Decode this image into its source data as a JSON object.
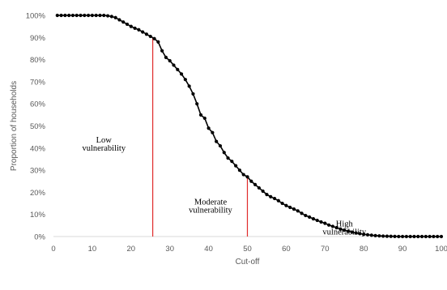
{
  "chart_data": {
    "type": "line",
    "title": "",
    "xlabel": "Cut-off",
    "ylabel": "Proportion of households",
    "xlim": [
      0,
      100
    ],
    "ylim": [
      0,
      100
    ],
    "x_ticks": [
      0,
      10,
      20,
      30,
      40,
      50,
      60,
      70,
      80,
      90,
      100
    ],
    "x_tick_labels": [
      "0",
      "10",
      "20",
      "30",
      "40",
      "50",
      "60",
      "70",
      "80",
      "90",
      "100"
    ],
    "y_ticks": [
      0,
      10,
      20,
      30,
      40,
      50,
      60,
      70,
      80,
      90,
      100
    ],
    "y_tick_labels": [
      "0%",
      "10%",
      "20%",
      "30%",
      "40%",
      "50%",
      "60%",
      "70%",
      "80%",
      "90%",
      "100%"
    ],
    "grid": false,
    "legend": "none",
    "colors": {
      "series": "#000000",
      "cutoff_lines": "#e02b2b",
      "text": "#595959"
    },
    "series": [
      {
        "name": "",
        "x": [
          1,
          2,
          3,
          4,
          5,
          6,
          7,
          8,
          9,
          10,
          11,
          12,
          13,
          14,
          15,
          16,
          17,
          18,
          19,
          20,
          21,
          22,
          23,
          24,
          25,
          26,
          27,
          28,
          29,
          30,
          31,
          32,
          33,
          34,
          35,
          36,
          37,
          38,
          39,
          40,
          41,
          42,
          43,
          44,
          45,
          46,
          47,
          48,
          49,
          50,
          51,
          52,
          53,
          54,
          55,
          56,
          57,
          58,
          59,
          60,
          61,
          62,
          63,
          64,
          65,
          66,
          67,
          68,
          69,
          70,
          71,
          72,
          73,
          74,
          75,
          76,
          77,
          78,
          79,
          80,
          81,
          82,
          83,
          84,
          85,
          86,
          87,
          88,
          89,
          90,
          91,
          92,
          93,
          94,
          95,
          96,
          97,
          98,
          99,
          100
        ],
        "values": [
          100,
          100,
          100,
          100,
          100,
          100,
          100,
          100,
          100,
          100,
          100,
          100,
          100,
          99.8,
          99.5,
          99,
          98,
          97,
          96,
          95,
          94.2,
          93.5,
          92.5,
          91.5,
          90.5,
          89.5,
          88,
          84,
          81,
          79.5,
          77.5,
          75.5,
          73.5,
          71,
          68,
          64.5,
          60,
          55,
          53.5,
          49,
          47,
          43,
          41,
          38,
          35.5,
          34,
          32,
          30,
          28,
          27,
          25,
          23.5,
          22,
          20.5,
          19,
          18,
          17.2,
          16.2,
          15,
          14,
          13.2,
          12.4,
          11.6,
          10.5,
          9.5,
          8.8,
          8,
          7.3,
          6.6,
          6,
          5.2,
          4.6,
          4,
          3.4,
          2.9,
          2.4,
          2,
          1.6,
          1.3,
          1,
          0.8,
          0.6,
          0.4,
          0.3,
          0.2,
          0.15,
          0.1,
          0.05,
          0,
          0,
          0,
          0,
          0,
          0,
          0,
          0,
          0,
          0,
          0,
          0
        ]
      }
    ],
    "cutoff_lines": [
      {
        "x": 25.6,
        "y": 90
      },
      {
        "x": 50,
        "y": 27
      }
    ],
    "annotations": [
      {
        "line1": "Low",
        "line2": "vulnerability",
        "x": 13,
        "y1": 42.5,
        "y2": 38.8
      },
      {
        "line1": "Moderate",
        "line2": "vulnerability",
        "x": 40.5,
        "y1": 14.5,
        "y2": 10.8
      },
      {
        "line1": "High",
        "line2": "vulnerability",
        "x": 75,
        "y1": 4.6,
        "y2": 0.9
      }
    ]
  }
}
